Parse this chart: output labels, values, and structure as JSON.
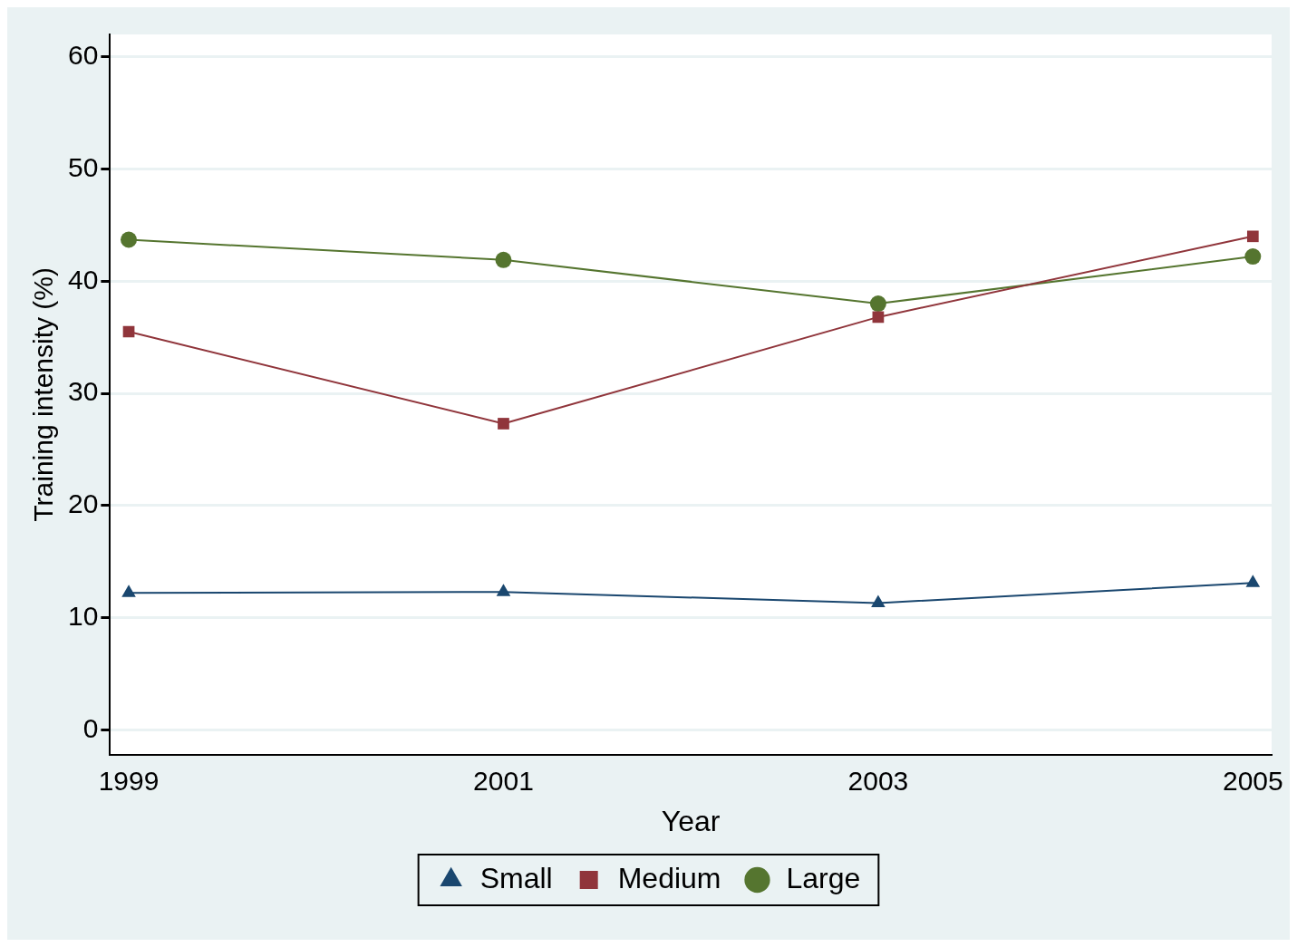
{
  "chart_data": {
    "type": "line",
    "xlabel": "Year",
    "ylabel": "Training intensity (%)",
    "x": [
      1999,
      2001,
      2003,
      2005
    ],
    "xlim": [
      1998.9,
      2005.1
    ],
    "xticks": [
      1999,
      2001,
      2003,
      2005
    ],
    "ylim": [
      -2.2,
      62
    ],
    "yticks": [
      0,
      10,
      20,
      30,
      40,
      50,
      60
    ],
    "grid": "y",
    "legend": "bottom",
    "line_style": "solid",
    "series": [
      {
        "name": "Small",
        "color": "#1a476f",
        "marker": "triangle",
        "values": [
          12.2,
          12.3,
          11.3,
          13.1
        ]
      },
      {
        "name": "Medium",
        "color": "#90353b",
        "marker": "square",
        "values": [
          35.5,
          27.3,
          36.8,
          44.0
        ]
      },
      {
        "name": "Large",
        "color": "#55752f",
        "marker": "circle",
        "values": [
          43.7,
          41.9,
          38.0,
          42.2
        ]
      }
    ]
  }
}
